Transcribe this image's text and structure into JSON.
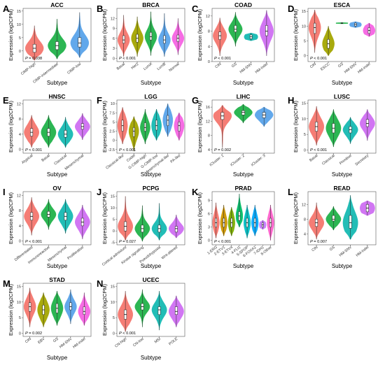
{
  "colors": {
    "red": "#f4766e",
    "olive": "#a3a500",
    "green": "#21b24a",
    "teal": "#16b9b2",
    "blue": "#5aa3ea",
    "purple": "#cf6ff2",
    "pink": "#f564e3"
  },
  "chart_data": [
    {
      "letter": "A",
      "title": "ACC",
      "type": "violin",
      "ylabel": "Expression (log2CPM)",
      "xlabel": "Subtype",
      "ylim": [
        -4,
        16
      ],
      "yticks": [
        0,
        5,
        10,
        15
      ],
      "pvalue": "0.038",
      "categories": [
        "CIMP-high",
        "CIMP-intermediate",
        "CIMP-low"
      ],
      "medians": [
        1.0,
        2.0,
        3.0
      ],
      "q1": [
        -0.5,
        0.5,
        1.5
      ],
      "q3": [
        2.5,
        3.5,
        5.0
      ],
      "lower": [
        -3.5,
        -3.0,
        -2.5
      ],
      "upper": [
        9.5,
        12.0,
        14.5
      ]
    },
    {
      "letter": "B",
      "title": "BRCA",
      "type": "violin",
      "ylabel": "Expression (log2CPM)",
      "xlabel": "Subtype",
      "ylim": [
        -1,
        15
      ],
      "yticks": [
        0,
        3,
        6,
        9,
        12
      ],
      "pvalue": "< 0.001",
      "categories": [
        "Basal",
        "Her2",
        "LumA",
        "LumB",
        "Normal"
      ],
      "medians": [
        5.5,
        6.0,
        6.5,
        5.5,
        6.0
      ],
      "q1": [
        4.5,
        4.8,
        5.5,
        4.5,
        5.0
      ],
      "q3": [
        6.8,
        7.2,
        7.8,
        6.8,
        7.0
      ],
      "lower": [
        0.5,
        0.5,
        0.8,
        0.5,
        1.0
      ],
      "upper": [
        13.0,
        12.5,
        14.0,
        13.5,
        12.0
      ]
    },
    {
      "letter": "C",
      "title": "COAD",
      "type": "violin",
      "ylabel": "Expression (log2CPM)",
      "xlabel": "Subtype",
      "ylim": [
        0,
        14
      ],
      "yticks": [
        0,
        4,
        8,
        12
      ],
      "pvalue": "< 0.001",
      "categories": [
        "CIN",
        "GS",
        "HM-SNV",
        "HM-indel"
      ],
      "medians": [
        6.8,
        8.5,
        6.5,
        8.0
      ],
      "q1": [
        5.8,
        7.8,
        6.0,
        6.8
      ],
      "q3": [
        7.8,
        9.5,
        7.0,
        9.5
      ],
      "lower": [
        1.5,
        4.0,
        5.5,
        1.5
      ],
      "upper": [
        11.5,
        13.0,
        7.5,
        13.5
      ]
    },
    {
      "letter": "D",
      "title": "ESCA",
      "type": "violin",
      "ylabel": "Expression (log2CPM)",
      "xlabel": "Subtype",
      "ylim": [
        -2,
        16
      ],
      "yticks": [
        0,
        5,
        10,
        15
      ],
      "pvalue": "< 0.001",
      "categories": [
        "CIN",
        "ESCC",
        "GS",
        "HM-SNV",
        "HM-indel"
      ],
      "medians": [
        9.5,
        4.0,
        11.0,
        10.5,
        8.5
      ],
      "q1": [
        7.5,
        2.5,
        10.9,
        10.0,
        7.5
      ],
      "q3": [
        11.0,
        5.5,
        11.1,
        11.0,
        9.5
      ],
      "lower": [
        1.0,
        0.0,
        10.8,
        9.5,
        6.5
      ],
      "upper": [
        15.5,
        10.0,
        11.2,
        11.5,
        11.0
      ]
    },
    {
      "letter": "E",
      "title": "HNSC",
      "type": "violin",
      "ylabel": "Expression (log2CPM)",
      "xlabel": "Subtype",
      "ylim": [
        -1,
        13
      ],
      "yticks": [
        0,
        4,
        8,
        12
      ],
      "pvalue": "< 0.001",
      "categories": [
        "Atypical",
        "Basal",
        "Classical",
        "Mesenchymal"
      ],
      "medians": [
        4.5,
        4.5,
        4.0,
        6.0
      ],
      "q1": [
        3.5,
        3.5,
        3.2,
        5.3
      ],
      "q3": [
        5.5,
        5.5,
        5.0,
        6.8
      ],
      "lower": [
        0.5,
        0.5,
        0.5,
        2.5
      ],
      "upper": [
        9.0,
        9.0,
        8.5,
        9.5
      ]
    },
    {
      "letter": "F",
      "title": "LGG",
      "type": "violin",
      "ylabel": "Expression (log2CPM)",
      "xlabel": "Subtype",
      "ylim": [
        -3.5,
        11
      ],
      "yticks": [
        -2.5,
        0,
        2.5,
        5,
        7.5,
        10
      ],
      "pvalue": "< 0.001",
      "categories": [
        "Classical-like",
        "Codel",
        "G-CIMP-high",
        "G-CIMP-low",
        "Mesenchymal-like",
        "PA-like"
      ],
      "medians": [
        4.0,
        2.5,
        3.5,
        4.0,
        5.5,
        4.0
      ],
      "q1": [
        2.5,
        1.0,
        2.5,
        2.8,
        4.0,
        2.5
      ],
      "q3": [
        5.5,
        3.5,
        4.8,
        5.5,
        6.8,
        5.0
      ],
      "lower": [
        -1.0,
        -3.0,
        -1.0,
        0.0,
        1.0,
        0.0
      ],
      "upper": [
        9.0,
        6.5,
        8.5,
        8.5,
        10.0,
        7.5
      ]
    },
    {
      "letter": "G",
      "title": "LIHC",
      "type": "violin",
      "ylabel": "Expression (log2CPM)",
      "xlabel": "Subtype",
      "ylim": [
        3,
        18
      ],
      "yticks": [
        4,
        8,
        12,
        16
      ],
      "pvalue": "0.002",
      "categories": [
        "iCluster: 1",
        "iCluster: 2",
        "iCluster: 3"
      ],
      "medians": [
        13.5,
        14.5,
        13.8
      ],
      "q1": [
        12.5,
        13.8,
        13.0
      ],
      "q3": [
        14.5,
        15.0,
        14.5
      ],
      "lower": [
        4.5,
        11.5,
        10.5
      ],
      "upper": [
        16.5,
        16.8,
        16.0
      ]
    },
    {
      "letter": "H",
      "title": "LUSC",
      "type": "violin",
      "ylabel": "Expression (log2CPM)",
      "xlabel": "Subtype",
      "ylim": [
        -1,
        16
      ],
      "yticks": [
        0,
        5,
        10,
        15
      ],
      "pvalue": "< 0.001",
      "categories": [
        "Basal",
        "Classical",
        "Primitive",
        "Secretory"
      ],
      "medians": [
        7.5,
        7.0,
        6.5,
        8.5
      ],
      "q1": [
        6.0,
        5.5,
        5.5,
        7.5
      ],
      "q3": [
        9.0,
        8.5,
        7.5,
        9.8
      ],
      "lower": [
        1.5,
        1.0,
        2.0,
        3.0
      ],
      "upper": [
        14.0,
        13.0,
        10.5,
        13.0
      ]
    },
    {
      "letter": "I",
      "title": "OV",
      "type": "violin",
      "ylabel": "Expression (log2CPM)",
      "xlabel": "Subtype",
      "ylim": [
        -1,
        13
      ],
      "yticks": [
        0,
        4,
        8,
        12
      ],
      "pvalue": "< 0.001",
      "categories": [
        "Differentiated",
        "Immunoreactive",
        "Mesenchymal",
        "Proliferative"
      ],
      "medians": [
        6.5,
        7.0,
        6.5,
        5.0
      ],
      "q1": [
        5.5,
        6.3,
        5.5,
        4.0
      ],
      "q3": [
        7.5,
        7.8,
        7.5,
        6.0
      ],
      "lower": [
        1.5,
        3.0,
        2.0,
        0.5
      ],
      "upper": [
        11.5,
        11.0,
        11.0,
        9.5
      ]
    },
    {
      "letter": "J",
      "title": "PCPG",
      "type": "violin",
      "ylabel": "Expression (log2CPM)",
      "xlabel": "Subtype",
      "ylim": [
        -6,
        17
      ],
      "yticks": [
        -5,
        0,
        5,
        10,
        15
      ],
      "pvalue": "0.027",
      "categories": [
        "Cortical admixture",
        "Kinase signaling",
        "Pseudohypoxia",
        "Wnt-altered"
      ],
      "medians": [
        2.0,
        1.0,
        1.0,
        1.0
      ],
      "q1": [
        0.0,
        -0.5,
        -0.5,
        -0.5
      ],
      "q3": [
        4.0,
        2.5,
        2.5,
        2.0
      ],
      "lower": [
        -4.0,
        -4.5,
        -4.0,
        -3.0
      ],
      "upper": [
        15.0,
        11.0,
        12.0,
        7.0
      ]
    },
    {
      "letter": "K",
      "title": "PRAD",
      "type": "violin",
      "ylabel": "Expression (log2CPM)",
      "xlabel": "Subtype",
      "ylim": [
        -1,
        11
      ],
      "yticks": [
        0,
        3,
        6,
        9
      ],
      "pvalue": "< 0.001",
      "categories": [
        "1-ERG",
        "2-ETV1",
        "3-ETV4",
        "4-FLI1",
        "5-SPOP",
        "6-FOXA1",
        "7-IDH1",
        "8-Other"
      ],
      "medians": [
        4.0,
        4.0,
        4.0,
        5.5,
        4.0,
        4.0,
        3.5,
        4.0
      ],
      "q1": [
        3.0,
        3.0,
        3.0,
        4.5,
        3.0,
        3.0,
        3.0,
        3.0
      ],
      "q3": [
        5.0,
        5.0,
        5.0,
        6.5,
        5.0,
        5.0,
        4.0,
        5.0
      ],
      "lower": [
        0.5,
        1.0,
        1.0,
        3.0,
        0.5,
        1.0,
        2.5,
        0.0
      ],
      "upper": [
        8.5,
        8.0,
        7.5,
        10.5,
        8.0,
        8.0,
        4.5,
        8.0
      ]
    },
    {
      "letter": "L",
      "title": "READ",
      "type": "violin",
      "ylabel": "Expression (log2CPM)",
      "xlabel": "Subtype",
      "ylim": [
        1,
        15.5
      ],
      "yticks": [
        4,
        8,
        12
      ],
      "pvalue": "0.007",
      "categories": [
        "CIN",
        "GS",
        "HM-SNV",
        "HM-indel"
      ],
      "medians": [
        7.0,
        8.0,
        7.0,
        11.0
      ],
      "q1": [
        6.0,
        7.5,
        5.5,
        10.0
      ],
      "q3": [
        8.0,
        9.0,
        9.0,
        12.0
      ],
      "lower": [
        2.5,
        5.0,
        2.5,
        9.0
      ],
      "upper": [
        12.5,
        11.5,
        14.5,
        13.0
      ]
    },
    {
      "letter": "M",
      "title": "STAD",
      "type": "violin",
      "ylabel": "Expression (log2CPM)",
      "xlabel": "Subtype",
      "ylim": [
        -1,
        16
      ],
      "yticks": [
        0,
        5,
        10,
        15
      ],
      "pvalue": "0.002",
      "categories": [
        "CIN",
        "EBV",
        "GS",
        "HM-SNV",
        "HM-indel"
      ],
      "medians": [
        8.5,
        7.5,
        8.0,
        8.5,
        7.0
      ],
      "q1": [
        7.0,
        6.0,
        6.5,
        7.5,
        6.0
      ],
      "q3": [
        9.8,
        9.0,
        9.5,
        9.8,
        8.5
      ],
      "lower": [
        2.0,
        2.0,
        2.5,
        3.0,
        2.5
      ],
      "upper": [
        14.5,
        13.0,
        13.5,
        14.0,
        13.0
      ]
    },
    {
      "letter": "N",
      "title": "UCEC",
      "type": "violin",
      "ylabel": "Expression (log2CPM)",
      "xlabel": "Subtype",
      "ylim": [
        -1,
        16
      ],
      "yticks": [
        0,
        5,
        10,
        15
      ],
      "pvalue": "< 0.001",
      "categories": [
        "CN-high",
        "CN-low",
        "MSI",
        "POLE"
      ],
      "medians": [
        6.0,
        8.5,
        7.5,
        7.0
      ],
      "q1": [
        4.5,
        7.5,
        6.0,
        6.0
      ],
      "q3": [
        7.5,
        9.5,
        8.5,
        8.5
      ],
      "lower": [
        0.5,
        2.0,
        1.0,
        2.0
      ],
      "upper": [
        13.5,
        14.0,
        13.5,
        12.0
      ]
    }
  ]
}
